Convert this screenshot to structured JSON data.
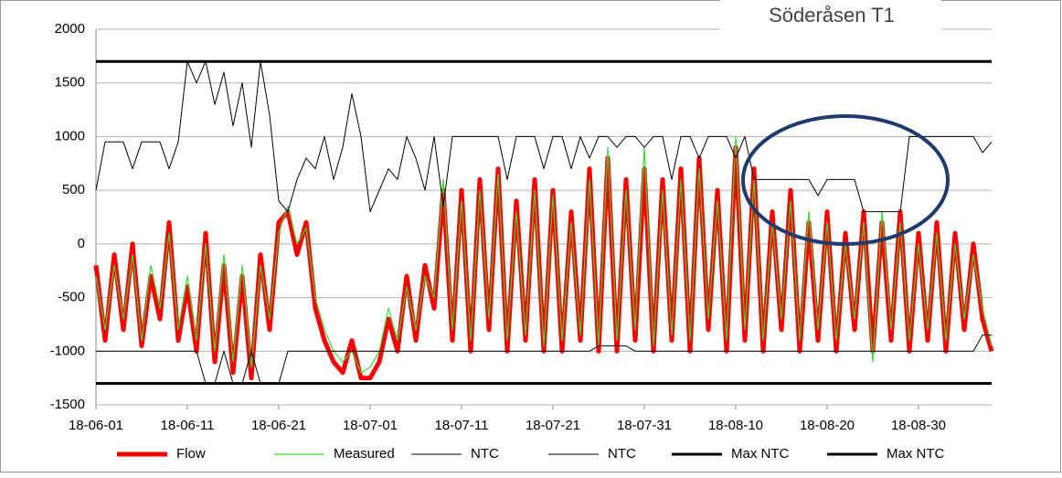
{
  "chart_data": {
    "type": "line",
    "title": "Söderåsen T1",
    "x": [
      "18-06-01",
      "18-06-02",
      "18-06-03",
      "18-06-04",
      "18-06-05",
      "18-06-06",
      "18-06-07",
      "18-06-08",
      "18-06-09",
      "18-06-10",
      "18-06-11",
      "18-06-12",
      "18-06-13",
      "18-06-14",
      "18-06-15",
      "18-06-16",
      "18-06-17",
      "18-06-18",
      "18-06-19",
      "18-06-20",
      "18-06-21",
      "18-06-22",
      "18-06-23",
      "18-06-24",
      "18-06-25",
      "18-06-26",
      "18-06-27",
      "18-06-28",
      "18-06-29",
      "18-06-30",
      "18-07-01",
      "18-07-02",
      "18-07-03",
      "18-07-04",
      "18-07-05",
      "18-07-06",
      "18-07-07",
      "18-07-08",
      "18-07-09",
      "18-07-10",
      "18-07-11",
      "18-07-12",
      "18-07-13",
      "18-07-14",
      "18-07-15",
      "18-07-16",
      "18-07-17",
      "18-07-18",
      "18-07-19",
      "18-07-20",
      "18-07-21",
      "18-07-22",
      "18-07-23",
      "18-07-24",
      "18-07-25",
      "18-07-26",
      "18-07-27",
      "18-07-28",
      "18-07-29",
      "18-07-30",
      "18-07-31",
      "18-08-01",
      "18-08-02",
      "18-08-03",
      "18-08-04",
      "18-08-05",
      "18-08-06",
      "18-08-07",
      "18-08-08",
      "18-08-09",
      "18-08-10",
      "18-08-11",
      "18-08-12",
      "18-08-13",
      "18-08-14",
      "18-08-15",
      "18-08-16",
      "18-08-17",
      "18-08-18",
      "18-08-19",
      "18-08-20",
      "18-08-21",
      "18-08-22",
      "18-08-23",
      "18-08-24",
      "18-08-25",
      "18-08-26",
      "18-08-27",
      "18-08-28",
      "18-08-29",
      "18-08-30",
      "18-08-31",
      "18-09-01",
      "18-09-02",
      "18-09-03",
      "18-09-04",
      "18-09-05",
      "18-09-06",
      "18-09-07"
    ],
    "series": [
      {
        "name": "Flow",
        "color": "#ff0000",
        "line_width": 5,
        "values": [
          -200,
          -900,
          -100,
          -800,
          0,
          -950,
          -300,
          -700,
          200,
          -900,
          -400,
          -1000,
          100,
          -1100,
          -200,
          -1200,
          -300,
          -1250,
          -100,
          -800,
          200,
          300,
          -100,
          200,
          -600,
          -900,
          -1100,
          -1200,
          -900,
          -1250,
          -1250,
          -1100,
          -700,
          -1000,
          -300,
          -900,
          -200,
          -600,
          500,
          -900,
          500,
          -1000,
          600,
          -800,
          700,
          -1000,
          400,
          -900,
          600,
          -1000,
          500,
          -1000,
          300,
          -900,
          700,
          -1000,
          800,
          -1000,
          600,
          -900,
          700,
          -1000,
          600,
          -900,
          700,
          -1000,
          800,
          -800,
          500,
          -1000,
          900,
          -900,
          700,
          -1000,
          300,
          -800,
          500,
          -1000,
          200,
          -900,
          300,
          -1000,
          100,
          -800,
          300,
          -1000,
          200,
          -900,
          300,
          -1000,
          100,
          -900,
          200,
          -1000,
          100,
          -800,
          0,
          -700,
          -1000
        ]
      },
      {
        "name": "Measured",
        "color": "#33dd33",
        "line_width": 1.2,
        "values": [
          -300,
          -800,
          -200,
          -700,
          -100,
          -900,
          -200,
          -600,
          100,
          -800,
          -300,
          -900,
          0,
          -1000,
          -100,
          -1100,
          -200,
          -1150,
          -200,
          -700,
          100,
          350,
          0,
          150,
          -500,
          -800,
          -1000,
          -1100,
          -1000,
          -1200,
          -1150,
          -1000,
          -600,
          -900,
          -400,
          -800,
          -300,
          -500,
          600,
          -800,
          400,
          -900,
          500,
          -700,
          650,
          -900,
          300,
          -850,
          500,
          -950,
          450,
          -900,
          200,
          -850,
          600,
          -950,
          900,
          -900,
          500,
          -800,
          900,
          -950,
          500,
          -850,
          600,
          -900,
          700,
          -700,
          400,
          -900,
          1000,
          -800,
          600,
          -900,
          200,
          -700,
          400,
          -900,
          300,
          -800,
          200,
          -900,
          0,
          -700,
          200,
          -1100,
          300,
          -800,
          200,
          -900,
          0,
          -800,
          100,
          -900,
          0,
          -700,
          -100,
          -600,
          -950
        ]
      },
      {
        "name": "NTC",
        "color": "#000000",
        "line_width": 1,
        "values": [
          500,
          950,
          950,
          950,
          700,
          950,
          950,
          950,
          700,
          950,
          1700,
          1500,
          1700,
          1300,
          1600,
          1100,
          1500,
          900,
          1700,
          1200,
          400,
          300,
          600,
          800,
          700,
          1000,
          600,
          900,
          1400,
          1000,
          300,
          500,
          700,
          600,
          1000,
          800,
          500,
          1000,
          350,
          1000,
          1000,
          1000,
          1000,
          1000,
          1000,
          600,
          1000,
          1000,
          1000,
          700,
          1000,
          1000,
          700,
          1000,
          800,
          1000,
          1000,
          900,
          1000,
          1000,
          900,
          1000,
          1000,
          600,
          1000,
          1000,
          800,
          1000,
          1000,
          1000,
          800,
          1000,
          600,
          600,
          600,
          600,
          600,
          600,
          600,
          450,
          600,
          600,
          600,
          600,
          300,
          300,
          300,
          300,
          300,
          1000,
          1000,
          1000,
          1000,
          1000,
          1000,
          1000,
          1000,
          850,
          950
        ]
      },
      {
        "name": "NTC",
        "color": "#000000",
        "line_width": 1,
        "values": [
          -1000,
          -1000,
          -1000,
          -1000,
          -1000,
          -1000,
          -1000,
          -1000,
          -1000,
          -1000,
          -1000,
          -1000,
          -1300,
          -1300,
          -1000,
          -1300,
          -1300,
          -1000,
          -1300,
          -1300,
          -1300,
          -1000,
          -1000,
          -1000,
          -1000,
          -1000,
          -1000,
          -1000,
          -1000,
          -1000,
          -1000,
          -1000,
          -1000,
          -1000,
          -1000,
          -1000,
          -1000,
          -1000,
          -1000,
          -1000,
          -1000,
          -1000,
          -1000,
          -1000,
          -1000,
          -1000,
          -1000,
          -1000,
          -1000,
          -1000,
          -1000,
          -1000,
          -1000,
          -1000,
          -1000,
          -950,
          -950,
          -950,
          -950,
          -1000,
          -1000,
          -1000,
          -1000,
          -1000,
          -1000,
          -1000,
          -1000,
          -1000,
          -1000,
          -1000,
          -1000,
          -1000,
          -1000,
          -1000,
          -1000,
          -1000,
          -1000,
          -1000,
          -1000,
          -1000,
          -1000,
          -1000,
          -1000,
          -1000,
          -1000,
          -1000,
          -1000,
          -1000,
          -1000,
          -1000,
          -1000,
          -1000,
          -1000,
          -1000,
          -1000,
          -1000,
          -1000,
          -850,
          -850
        ]
      },
      {
        "name": "Max NTC",
        "color": "#000000",
        "line_width": 3,
        "x": [
          "18-06-01",
          "18-09-07"
        ],
        "values": [
          1700,
          1700
        ]
      },
      {
        "name": "Max NTC",
        "color": "#000000",
        "line_width": 3,
        "x": [
          "18-06-01",
          "18-09-07"
        ],
        "values": [
          -1300,
          -1300
        ]
      }
    ],
    "xlim": [
      "18-06-01",
      "18-09-07"
    ],
    "xticks": [
      "18-06-01",
      "18-06-11",
      "18-06-21",
      "18-07-01",
      "18-07-11",
      "18-07-21",
      "18-07-31",
      "18-08-10",
      "18-08-20",
      "18-08-30"
    ],
    "ylim": [
      -1500,
      2000
    ],
    "yticks": [
      -1500,
      -1000,
      -500,
      0,
      500,
      1000,
      1500,
      2000
    ],
    "grid": true,
    "legend": "bottom"
  }
}
